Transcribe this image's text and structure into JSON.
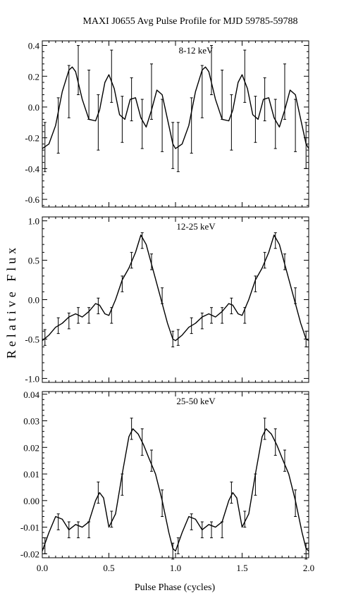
{
  "title": "MAXI J0655 Avg Pulse Profile for MJD 59785-59788",
  "ylabel": "Relative Flux",
  "xlabel": "Pulse Phase (cycles)",
  "x_ticks": [
    {
      "value": 0.0,
      "label": "0.0"
    },
    {
      "value": 0.5,
      "label": "0.5"
    },
    {
      "value": 1.0,
      "label": "1.0"
    },
    {
      "value": 1.5,
      "label": "1.5"
    },
    {
      "value": 2.0,
      "label": "2.0"
    }
  ],
  "chart_data": [
    {
      "type": "line",
      "label": "8-12 keV",
      "xlim": [
        0,
        2
      ],
      "ylim": [
        -0.65,
        0.43
      ],
      "yticks": [
        {
          "value": -0.6,
          "label": "-0.6"
        },
        {
          "value": -0.4,
          "label": "-0.4"
        },
        {
          "value": -0.2,
          "label": "-0.2"
        },
        {
          "value": 0.0,
          "label": "0.0"
        },
        {
          "value": 0.2,
          "label": "0.2"
        },
        {
          "value": 0.4,
          "label": "0.4"
        }
      ],
      "x": [
        0.02,
        0.12,
        0.2,
        0.27,
        0.35,
        0.42,
        0.52,
        0.6,
        0.67,
        0.75,
        0.82,
        0.9,
        0.98,
        1.02,
        1.12,
        1.2,
        1.27,
        1.35,
        1.42,
        1.52,
        1.6,
        1.67,
        1.75,
        1.82,
        1.9,
        1.98
      ],
      "y": [
        -0.26,
        -0.12,
        0.1,
        0.24,
        0.08,
        -0.1,
        0.2,
        -0.08,
        0.05,
        -0.11,
        0.1,
        -0.12,
        -0.25,
        -0.26,
        -0.12,
        0.1,
        0.24,
        0.08,
        -0.1,
        0.2,
        -0.08,
        0.05,
        -0.11,
        0.1,
        -0.12,
        -0.25
      ],
      "err": [
        0.16,
        0.18,
        0.17,
        0.16,
        0.16,
        0.18,
        0.17,
        0.15,
        0.14,
        0.16,
        0.18,
        0.17,
        0.15,
        0.16,
        0.18,
        0.17,
        0.16,
        0.16,
        0.18,
        0.17,
        0.15,
        0.14,
        0.16,
        0.18,
        0.17,
        0.15
      ],
      "curve_x": [
        0,
        0.05,
        0.1,
        0.15,
        0.2,
        0.225,
        0.25,
        0.3,
        0.35,
        0.4,
        0.43,
        0.47,
        0.5,
        0.54,
        0.58,
        0.62,
        0.66,
        0.7,
        0.74,
        0.78,
        0.82,
        0.86,
        0.9,
        0.94,
        0.98,
        1.0,
        1.05,
        1.1,
        1.15,
        1.2,
        1.225,
        1.25,
        1.3,
        1.35,
        1.4,
        1.43,
        1.47,
        1.5,
        1.54,
        1.58,
        1.62,
        1.66,
        1.7,
        1.74,
        1.78,
        1.82,
        1.86,
        1.9,
        1.94,
        1.98,
        2.0
      ],
      "curve_y": [
        -0.27,
        -0.24,
        -0.12,
        0.1,
        0.24,
        0.26,
        0.23,
        0.05,
        -0.08,
        -0.09,
        -0.02,
        0.16,
        0.21,
        0.12,
        -0.05,
        -0.08,
        0.05,
        0.06,
        -0.07,
        -0.13,
        -0.02,
        0.11,
        0.08,
        -0.08,
        -0.24,
        -0.27,
        -0.24,
        -0.12,
        0.1,
        0.24,
        0.26,
        0.23,
        0.05,
        -0.08,
        -0.09,
        -0.02,
        0.16,
        0.21,
        0.12,
        -0.05,
        -0.08,
        0.05,
        0.06,
        -0.07,
        -0.13,
        -0.02,
        0.11,
        0.08,
        -0.08,
        -0.24,
        -0.27
      ]
    },
    {
      "type": "line",
      "label": "12-25 keV",
      "xlim": [
        0,
        2
      ],
      "ylim": [
        -1.05,
        1.05
      ],
      "yticks": [
        {
          "value": -1.0,
          "label": "-1.0"
        },
        {
          "value": -0.5,
          "label": "-0.5"
        },
        {
          "value": 0.0,
          "label": "0.0"
        },
        {
          "value": 0.5,
          "label": "0.5"
        },
        {
          "value": 1.0,
          "label": "1.0"
        }
      ],
      "x": [
        0.02,
        0.12,
        0.2,
        0.27,
        0.35,
        0.42,
        0.52,
        0.6,
        0.67,
        0.75,
        0.82,
        0.9,
        0.98,
        1.02,
        1.12,
        1.2,
        1.27,
        1.35,
        1.42,
        1.52,
        1.6,
        1.67,
        1.75,
        1.82,
        1.9,
        1.98
      ],
      "y": [
        -0.48,
        -0.33,
        -0.27,
        -0.2,
        -0.2,
        -0.08,
        -0.2,
        0.2,
        0.5,
        0.75,
        0.48,
        0.05,
        -0.5,
        -0.48,
        -0.33,
        -0.27,
        -0.2,
        -0.2,
        -0.08,
        -0.2,
        0.2,
        0.5,
        0.75,
        0.48,
        0.05,
        -0.5
      ],
      "err": [
        0.1,
        0.1,
        0.1,
        0.1,
        0.1,
        0.1,
        0.1,
        0.1,
        0.1,
        0.1,
        0.1,
        0.1,
        0.1,
        0.1,
        0.1,
        0.1,
        0.1,
        0.1,
        0.1,
        0.1,
        0.1,
        0.1,
        0.1,
        0.1,
        0.1,
        0.1
      ],
      "curve_x": [
        0,
        0.05,
        0.1,
        0.15,
        0.2,
        0.25,
        0.3,
        0.35,
        0.4,
        0.43,
        0.47,
        0.5,
        0.55,
        0.6,
        0.65,
        0.7,
        0.74,
        0.78,
        0.82,
        0.86,
        0.9,
        0.94,
        0.98,
        1.0,
        1.05,
        1.1,
        1.15,
        1.2,
        1.25,
        1.3,
        1.35,
        1.4,
        1.43,
        1.47,
        1.5,
        1.55,
        1.6,
        1.65,
        1.7,
        1.74,
        1.78,
        1.82,
        1.86,
        1.9,
        1.94,
        1.98,
        2.0
      ],
      "curve_y": [
        -0.52,
        -0.45,
        -0.35,
        -0.3,
        -0.22,
        -0.18,
        -0.22,
        -0.15,
        -0.05,
        -0.07,
        -0.18,
        -0.2,
        0.0,
        0.25,
        0.4,
        0.6,
        0.82,
        0.7,
        0.45,
        0.2,
        -0.05,
        -0.3,
        -0.5,
        -0.52,
        -0.45,
        -0.35,
        -0.3,
        -0.22,
        -0.18,
        -0.22,
        -0.15,
        -0.05,
        -0.07,
        -0.18,
        -0.2,
        0.0,
        0.25,
        0.4,
        0.6,
        0.82,
        0.7,
        0.45,
        0.2,
        -0.05,
        -0.3,
        -0.5,
        -0.52
      ]
    },
    {
      "type": "line",
      "label": "25-50 keV",
      "xlim": [
        0,
        2
      ],
      "ylim": [
        -0.0215,
        0.041
      ],
      "yticks": [
        {
          "value": -0.02,
          "label": "-0.02"
        },
        {
          "value": -0.01,
          "label": "-0.01"
        },
        {
          "value": 0.0,
          "label": "0.00"
        },
        {
          "value": 0.01,
          "label": "0.01"
        },
        {
          "value": 0.02,
          "label": "0.02"
        },
        {
          "value": 0.03,
          "label": "0.03"
        },
        {
          "value": 0.04,
          "label": "0.04"
        }
      ],
      "x": [
        0.02,
        0.12,
        0.2,
        0.27,
        0.35,
        0.42,
        0.52,
        0.6,
        0.67,
        0.75,
        0.82,
        0.9,
        0.98,
        1.02,
        1.12,
        1.2,
        1.27,
        1.35,
        1.42,
        1.52,
        1.6,
        1.67,
        1.75,
        1.82,
        1.9,
        1.98
      ],
      "y": [
        -0.017,
        -0.008,
        -0.011,
        -0.011,
        -0.011,
        0.003,
        -0.007,
        0.006,
        0.027,
        0.022,
        0.015,
        -0.001,
        -0.019,
        -0.017,
        -0.008,
        -0.011,
        -0.011,
        -0.011,
        0.003,
        -0.007,
        0.006,
        0.027,
        0.022,
        0.015,
        -0.001,
        -0.019
      ],
      "err": [
        0.003,
        0.003,
        0.003,
        0.003,
        0.003,
        0.004,
        0.003,
        0.004,
        0.004,
        0.005,
        0.004,
        0.005,
        0.003,
        0.003,
        0.003,
        0.003,
        0.003,
        0.003,
        0.004,
        0.003,
        0.004,
        0.004,
        0.005,
        0.004,
        0.005,
        0.003
      ],
      "curve_x": [
        0,
        0.05,
        0.1,
        0.15,
        0.2,
        0.25,
        0.3,
        0.35,
        0.4,
        0.43,
        0.46,
        0.5,
        0.55,
        0.6,
        0.65,
        0.68,
        0.72,
        0.76,
        0.8,
        0.85,
        0.9,
        0.95,
        0.98,
        1.0,
        1.05,
        1.1,
        1.15,
        1.2,
        1.25,
        1.3,
        1.35,
        1.4,
        1.43,
        1.46,
        1.5,
        1.55,
        1.6,
        1.65,
        1.68,
        1.72,
        1.76,
        1.8,
        1.85,
        1.9,
        1.95,
        1.98,
        2.0
      ],
      "curve_y": [
        -0.019,
        -0.012,
        -0.006,
        -0.007,
        -0.011,
        -0.009,
        -0.01,
        -0.008,
        0.0,
        0.003,
        0.001,
        -0.01,
        -0.005,
        0.01,
        0.024,
        0.027,
        0.025,
        0.021,
        0.016,
        0.01,
        0.0,
        -0.012,
        -0.018,
        -0.019,
        -0.012,
        -0.006,
        -0.007,
        -0.011,
        -0.009,
        -0.01,
        -0.008,
        0.0,
        0.003,
        0.001,
        -0.01,
        -0.005,
        0.01,
        0.024,
        0.027,
        0.025,
        0.021,
        0.016,
        0.01,
        0.0,
        -0.012,
        -0.018,
        -0.019
      ]
    }
  ]
}
